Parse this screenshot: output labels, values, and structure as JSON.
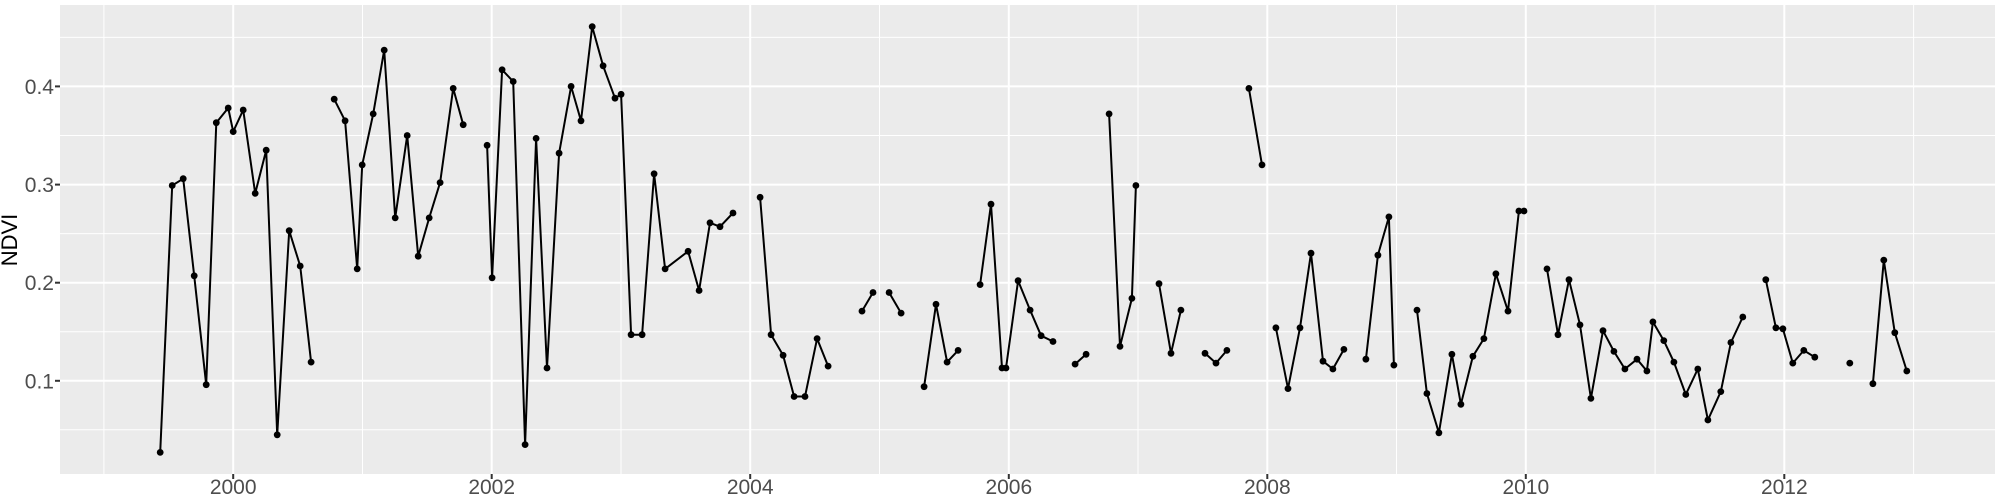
{
  "figure": {
    "y_axis_title": "NDVI",
    "x_tick_labels": [
      "2000",
      "2002",
      "2004",
      "2006",
      "2008",
      "2010",
      "2012"
    ],
    "y_tick_labels": [
      "0.1",
      "0.2",
      "0.3",
      "0.4"
    ]
  },
  "colors": {
    "figure_bg": "#ffffff",
    "panel_bg": "#ebebeb",
    "grid": "#ffffff",
    "series": "#000000",
    "tick_label": "#4d4d4d",
    "axis_title": "#000000",
    "tick_mark": "#333333"
  },
  "chart_data": {
    "type": "line",
    "title": "",
    "xlabel": "",
    "ylabel": "NDVI",
    "marker": "point",
    "grid": true,
    "legend_position": "none",
    "x_ticks": [
      2000,
      2002,
      2004,
      2006,
      2008,
      2010,
      2012
    ],
    "x_minor_ticks": [
      1999,
      2001,
      2003,
      2005,
      2007,
      2009,
      2011,
      2013
    ],
    "y_ticks": [
      0.1,
      0.2,
      0.3,
      0.4
    ],
    "y_minor_ticks": [
      0.05,
      0.15,
      0.25,
      0.35,
      0.45
    ],
    "xlim": [
      1998.66,
      2013.63
    ],
    "ylim": [
      0.005,
      0.483
    ],
    "segments": [
      [
        [
          1999.435,
          0.027
        ],
        [
          1999.528,
          0.299
        ],
        [
          1999.613,
          0.306
        ],
        [
          1999.698,
          0.207
        ],
        [
          1999.791,
          0.096
        ],
        [
          1999.869,
          0.363
        ],
        [
          1999.961,
          0.378
        ],
        [
          2000.0,
          0.354
        ],
        [
          2000.077,
          0.376
        ],
        [
          2000.17,
          0.291
        ],
        [
          2000.255,
          0.335
        ],
        [
          2000.34,
          0.045
        ],
        [
          2000.433,
          0.253
        ],
        [
          2000.518,
          0.217
        ],
        [
          2000.603,
          0.119
        ]
      ],
      [
        [
          2000.781,
          0.387
        ],
        [
          2000.866,
          0.365
        ],
        [
          2000.959,
          0.214
        ],
        [
          2000.998,
          0.32
        ],
        [
          2001.083,
          0.372
        ],
        [
          2001.168,
          0.437
        ],
        [
          2001.253,
          0.266
        ],
        [
          2001.346,
          0.35
        ],
        [
          2001.431,
          0.227
        ],
        [
          2001.516,
          0.266
        ],
        [
          2001.601,
          0.302
        ],
        [
          2001.702,
          0.398
        ],
        [
          2001.779,
          0.361
        ]
      ],
      [
        [
          2001.964,
          0.34
        ],
        [
          2002.003,
          0.205
        ],
        [
          2002.08,
          0.417
        ],
        [
          2002.166,
          0.405
        ],
        [
          2002.258,
          0.035
        ],
        [
          2002.343,
          0.347
        ],
        [
          2002.428,
          0.113
        ],
        [
          2002.521,
          0.332
        ],
        [
          2002.614,
          0.4
        ],
        [
          2002.691,
          0.365
        ],
        [
          2002.777,
          0.461
        ],
        [
          2002.862,
          0.421
        ],
        [
          2002.954,
          0.388
        ],
        [
          2003.001,
          0.392
        ],
        [
          2003.078,
          0.147
        ],
        [
          2003.163,
          0.147
        ],
        [
          2003.256,
          0.311
        ],
        [
          2003.341,
          0.214
        ],
        [
          2003.519,
          0.232
        ],
        [
          2003.604,
          0.192
        ],
        [
          2003.689,
          0.261
        ],
        [
          2003.766,
          0.257
        ],
        [
          2003.867,
          0.271
        ]
      ],
      [
        [
          2004.076,
          0.287
        ],
        [
          2004.161,
          0.147
        ],
        [
          2004.254,
          0.126
        ],
        [
          2004.339,
          0.084
        ],
        [
          2004.424,
          0.084
        ],
        [
          2004.517,
          0.143
        ],
        [
          2004.602,
          0.115
        ]
      ],
      [
        [
          2004.865,
          0.171
        ],
        [
          2004.95,
          0.19
        ]
      ],
      [
        [
          2005.074,
          0.19
        ],
        [
          2005.167,
          0.169
        ]
      ],
      [
        [
          2005.345,
          0.094
        ],
        [
          2005.437,
          0.178
        ],
        [
          2005.523,
          0.119
        ],
        [
          2005.608,
          0.131
        ]
      ],
      [
        [
          2005.778,
          0.198
        ],
        [
          2005.863,
          0.28
        ],
        [
          2005.948,
          0.113
        ],
        [
          2005.979,
          0.113
        ],
        [
          2006.072,
          0.202
        ],
        [
          2006.165,
          0.172
        ],
        [
          2006.25,
          0.146
        ],
        [
          2006.342,
          0.14
        ]
      ],
      [
        [
          2006.513,
          0.117
        ],
        [
          2006.598,
          0.127
        ]
      ],
      [
        [
          2006.776,
          0.372
        ],
        [
          2006.861,
          0.135
        ],
        [
          2006.953,
          0.184
        ],
        [
          2006.984,
          0.299
        ]
      ],
      [
        [
          2007.162,
          0.199
        ],
        [
          2007.255,
          0.128
        ],
        [
          2007.332,
          0.172
        ]
      ],
      [
        [
          2007.518,
          0.128
        ],
        [
          2007.603,
          0.118
        ],
        [
          2007.688,
          0.131
        ]
      ],
      [
        [
          2007.858,
          0.398
        ],
        [
          2007.959,
          0.32
        ]
      ],
      [
        [
          2008.067,
          0.154
        ],
        [
          2008.16,
          0.092
        ],
        [
          2008.253,
          0.154
        ],
        [
          2008.338,
          0.23
        ],
        [
          2008.431,
          0.12
        ],
        [
          2008.508,
          0.112
        ],
        [
          2008.593,
          0.132
        ]
      ],
      [
        [
          2008.763,
          0.122
        ],
        [
          2008.856,
          0.228
        ],
        [
          2008.941,
          0.267
        ],
        [
          2008.98,
          0.116
        ]
      ],
      [
        [
          2009.158,
          0.172
        ],
        [
          2009.235,
          0.087
        ],
        [
          2009.328,
          0.047
        ],
        [
          2009.428,
          0.127
        ],
        [
          2009.498,
          0.076
        ],
        [
          2009.591,
          0.125
        ],
        [
          2009.676,
          0.143
        ],
        [
          2009.769,
          0.209
        ],
        [
          2009.862,
          0.171
        ],
        [
          2009.947,
          0.273
        ],
        [
          2009.986,
          0.273
        ]
      ],
      [
        [
          2010.164,
          0.214
        ],
        [
          2010.249,
          0.147
        ],
        [
          2010.334,
          0.203
        ],
        [
          2010.419,
          0.157
        ],
        [
          2010.504,
          0.082
        ],
        [
          2010.597,
          0.151
        ],
        [
          2010.682,
          0.13
        ],
        [
          2010.767,
          0.112
        ],
        [
          2010.86,
          0.122
        ],
        [
          2010.937,
          0.11
        ],
        [
          2010.983,
          0.16
        ],
        [
          2011.068,
          0.141
        ],
        [
          2011.146,
          0.119
        ],
        [
          2011.238,
          0.086
        ],
        [
          2011.331,
          0.112
        ],
        [
          2011.409,
          0.06
        ],
        [
          2011.509,
          0.089
        ],
        [
          2011.587,
          0.139
        ],
        [
          2011.679,
          0.165
        ]
      ],
      [
        [
          2011.857,
          0.203
        ],
        [
          2011.935,
          0.154
        ],
        [
          2011.989,
          0.153
        ],
        [
          2012.066,
          0.118
        ],
        [
          2012.151,
          0.131
        ],
        [
          2012.236,
          0.124
        ]
      ],
      [
        [
          2012.507,
          0.118
        ]
      ],
      [
        [
          2012.685,
          0.097
        ],
        [
          2012.77,
          0.223
        ],
        [
          2012.855,
          0.149
        ],
        [
          2012.948,
          0.11
        ]
      ]
    ]
  }
}
